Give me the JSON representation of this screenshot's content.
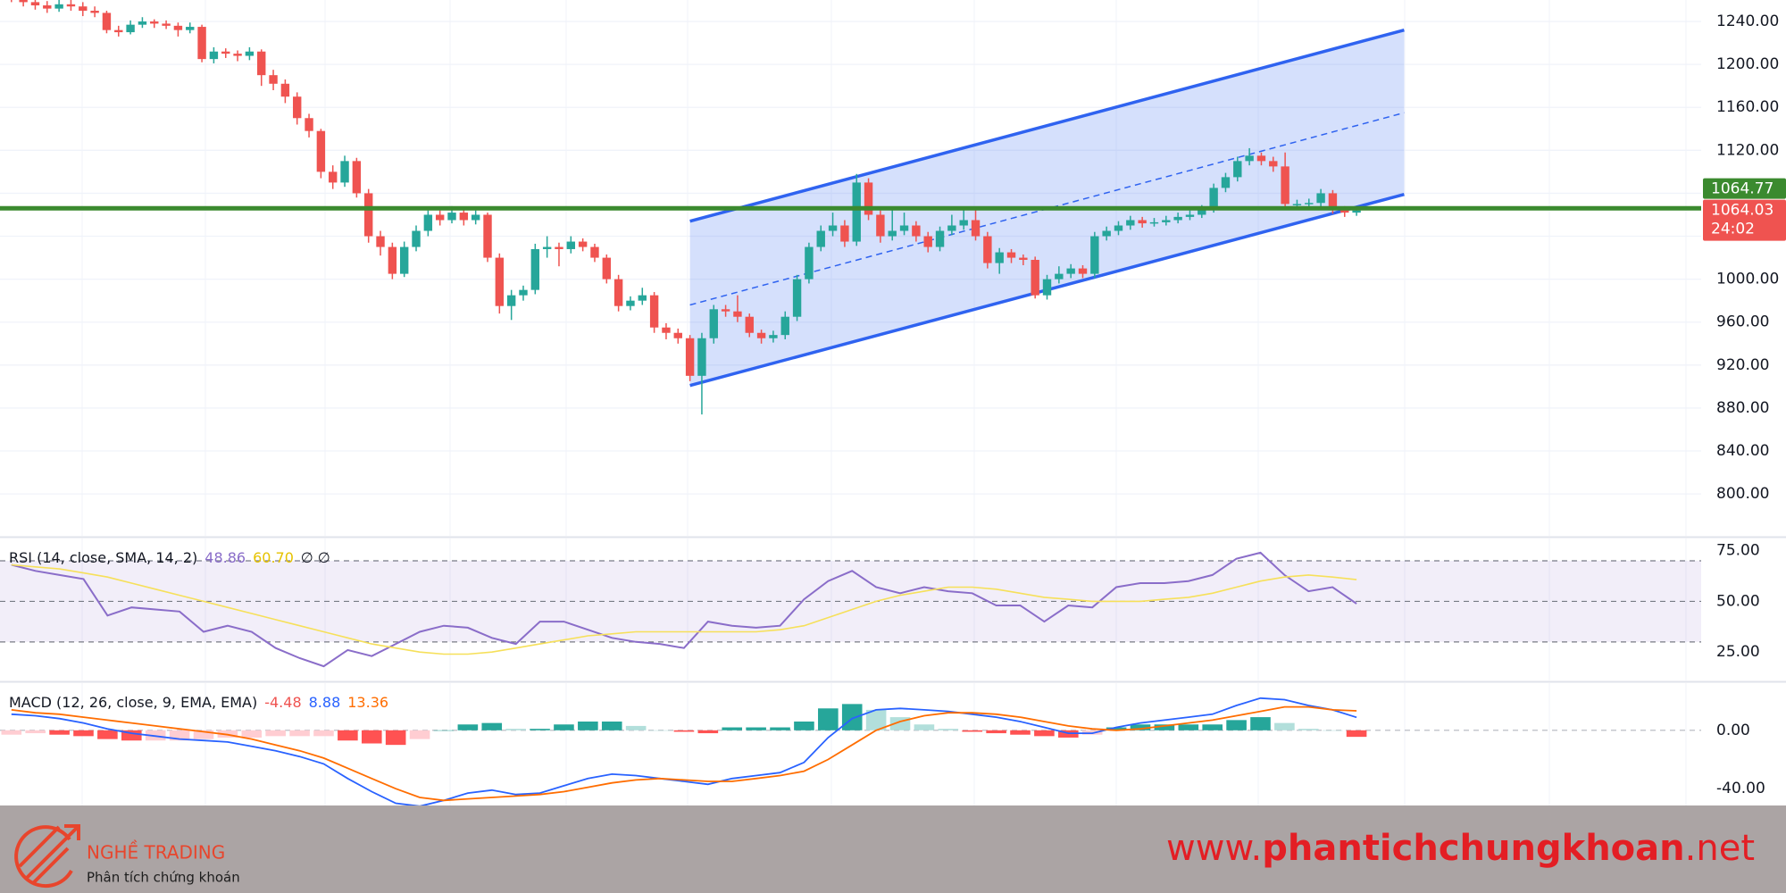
{
  "chart_data": [
    {
      "type": "candlestick",
      "ohlc": [
        [
          1265,
          1268,
          1258,
          1262
        ],
        [
          1262,
          1265,
          1254,
          1258
        ],
        [
          1258,
          1262,
          1251,
          1255
        ],
        [
          1255,
          1259,
          1248,
          1252
        ],
        [
          1252,
          1260,
          1249,
          1256
        ],
        [
          1256,
          1260,
          1250,
          1254
        ],
        [
          1254,
          1258,
          1245,
          1250
        ],
        [
          1250,
          1254,
          1244,
          1248
        ],
        [
          1248,
          1250,
          1229,
          1232
        ],
        [
          1232,
          1236,
          1226,
          1230
        ],
        [
          1230,
          1241,
          1228,
          1237
        ],
        [
          1237,
          1244,
          1234,
          1240
        ],
        [
          1240,
          1242,
          1234,
          1238
        ],
        [
          1238,
          1241,
          1233,
          1236
        ],
        [
          1236,
          1239,
          1226,
          1232
        ],
        [
          1232,
          1239,
          1229,
          1235
        ],
        [
          1235,
          1237,
          1202,
          1205
        ],
        [
          1205,
          1216,
          1201,
          1212
        ],
        [
          1212,
          1215,
          1206,
          1210
        ],
        [
          1210,
          1213,
          1203,
          1208
        ],
        [
          1208,
          1216,
          1204,
          1212
        ],
        [
          1212,
          1214,
          1180,
          1190
        ],
        [
          1190,
          1195,
          1176,
          1182
        ],
        [
          1182,
          1186,
          1164,
          1170
        ],
        [
          1170,
          1174,
          1144,
          1150
        ],
        [
          1150,
          1154,
          1132,
          1138
        ],
        [
          1138,
          1140,
          1094,
          1100
        ],
        [
          1100,
          1106,
          1084,
          1090
        ],
        [
          1090,
          1115,
          1086,
          1110
        ],
        [
          1110,
          1113,
          1076,
          1080
        ],
        [
          1080,
          1084,
          1034,
          1040
        ],
        [
          1040,
          1045,
          1022,
          1030
        ],
        [
          1030,
          1034,
          1000,
          1005
        ],
        [
          1005,
          1035,
          1002,
          1030
        ],
        [
          1030,
          1050,
          1026,
          1045
        ],
        [
          1045,
          1064,
          1040,
          1060
        ],
        [
          1060,
          1064,
          1050,
          1055
        ],
        [
          1055,
          1068,
          1052,
          1062
        ],
        [
          1062,
          1066,
          1050,
          1055
        ],
        [
          1055,
          1064,
          1051,
          1060
        ],
        [
          1060,
          1062,
          1016,
          1020
        ],
        [
          1020,
          1024,
          968,
          975
        ],
        [
          975,
          990,
          962,
          985
        ],
        [
          985,
          994,
          980,
          990
        ],
        [
          990,
          1033,
          986,
          1028
        ],
        [
          1028,
          1040,
          1020,
          1030
        ],
        [
          1030,
          1034,
          1012,
          1028
        ],
        [
          1028,
          1040,
          1024,
          1035
        ],
        [
          1035,
          1038,
          1026,
          1030
        ],
        [
          1030,
          1033,
          1016,
          1020
        ],
        [
          1020,
          1023,
          996,
          1000
        ],
        [
          1000,
          1004,
          970,
          975
        ],
        [
          975,
          984,
          971,
          980
        ],
        [
          980,
          992,
          976,
          985
        ],
        [
          985,
          988,
          950,
          955
        ],
        [
          955,
          959,
          944,
          950
        ],
        [
          950,
          954,
          940,
          945
        ],
        [
          945,
          948,
          905,
          910
        ],
        [
          910,
          950,
          874,
          945
        ],
        [
          945,
          976,
          940,
          972
        ],
        [
          972,
          976,
          965,
          970
        ],
        [
          970,
          985,
          960,
          965
        ],
        [
          965,
          968,
          946,
          950
        ],
        [
          950,
          953,
          940,
          945
        ],
        [
          945,
          952,
          941,
          948
        ],
        [
          948,
          970,
          944,
          965
        ],
        [
          965,
          1004,
          961,
          1000
        ],
        [
          1000,
          1034,
          996,
          1030
        ],
        [
          1030,
          1050,
          1026,
          1045
        ],
        [
          1045,
          1062,
          1040,
          1050
        ],
        [
          1050,
          1055,
          1030,
          1035
        ],
        [
          1035,
          1098,
          1031,
          1090
        ],
        [
          1090,
          1094,
          1055,
          1060
        ],
        [
          1060,
          1064,
          1034,
          1040
        ],
        [
          1040,
          1066,
          1036,
          1045
        ],
        [
          1045,
          1062,
          1041,
          1050
        ],
        [
          1050,
          1054,
          1035,
          1040
        ],
        [
          1040,
          1044,
          1025,
          1030
        ],
        [
          1030,
          1049,
          1026,
          1045
        ],
        [
          1045,
          1060,
          1041,
          1050
        ],
        [
          1050,
          1065,
          1046,
          1055
        ],
        [
          1055,
          1066,
          1036,
          1040
        ],
        [
          1040,
          1044,
          1010,
          1015
        ],
        [
          1015,
          1029,
          1005,
          1025
        ],
        [
          1025,
          1028,
          1015,
          1020
        ],
        [
          1020,
          1023,
          1013,
          1018
        ],
        [
          1018,
          1021,
          982,
          985
        ],
        [
          985,
          1004,
          981,
          1000
        ],
        [
          1000,
          1012,
          996,
          1005
        ],
        [
          1005,
          1014,
          1001,
          1010
        ],
        [
          1010,
          1013,
          1001,
          1005
        ],
        [
          1005,
          1044,
          1001,
          1040
        ],
        [
          1040,
          1049,
          1036,
          1045
        ],
        [
          1045,
          1054,
          1041,
          1050
        ],
        [
          1050,
          1059,
          1046,
          1055
        ],
        [
          1055,
          1058,
          1048,
          1052
        ],
        [
          1052,
          1057,
          1049,
          1053
        ],
        [
          1053,
          1059,
          1050,
          1055
        ],
        [
          1055,
          1062,
          1052,
          1058
        ],
        [
          1058,
          1064,
          1055,
          1060
        ],
        [
          1060,
          1069,
          1057,
          1065
        ],
        [
          1065,
          1089,
          1062,
          1085
        ],
        [
          1085,
          1099,
          1081,
          1095
        ],
        [
          1095,
          1114,
          1091,
          1110
        ],
        [
          1110,
          1122,
          1106,
          1115
        ],
        [
          1115,
          1118,
          1106,
          1110
        ],
        [
          1110,
          1114,
          1100,
          1105
        ],
        [
          1105,
          1118,
          1066,
          1070
        ],
        [
          1070,
          1074,
          1066,
          1070
        ],
        [
          1070,
          1075,
          1066,
          1071
        ],
        [
          1071,
          1084,
          1067,
          1080
        ],
        [
          1080,
          1083,
          1061,
          1065
        ],
        [
          1065,
          1068,
          1058,
          1062
        ],
        [
          1062,
          1067,
          1059,
          1064.03
        ]
      ],
      "up_color": "#26a69a",
      "down_color": "#ef5350",
      "ylim": [
        761,
        1260
      ],
      "yticks": [
        {
          "value": 1240,
          "label": "1240.00"
        },
        {
          "value": 1200,
          "label": "1200.00"
        },
        {
          "value": 1160,
          "label": "1160.00"
        },
        {
          "value": 1120,
          "label": "1120.00"
        },
        {
          "value": 1080,
          "label": "1080.00"
        },
        {
          "value": 1040,
          "label": "1040.00"
        },
        {
          "value": 1000,
          "label": "1000.00"
        },
        {
          "value": 960,
          "label": "960.00"
        },
        {
          "value": 920,
          "label": "920.00"
        },
        {
          "value": 880,
          "label": "880.00"
        },
        {
          "value": 840,
          "label": "840.00"
        },
        {
          "value": 800,
          "label": "800.00"
        }
      ],
      "grid": true,
      "channel": {
        "x": [
          57,
          117
        ],
        "upper": [
          1054,
          1232
        ],
        "middle": [
          976,
          1155
        ],
        "lower": [
          901,
          1079
        ],
        "color": "#2f63f0"
      },
      "horizontal_line": {
        "value": 1066,
        "color": "#3b8a2f"
      },
      "last_price": {
        "value": 1064.03,
        "label": "1064.03"
      },
      "countdown": "24:02",
      "marker_price": {
        "value": 1064.77,
        "label": "1064.77"
      }
    },
    {
      "type": "rsi",
      "title": "RSI (14, close, SMA, 14, 2)",
      "status": "∅ ∅",
      "series": [
        {
          "color": "#8a6dc9",
          "values": [
            68,
            65,
            63,
            61,
            43,
            47,
            46,
            45,
            35,
            38,
            35,
            27,
            22,
            18,
            26,
            23,
            29,
            35,
            38,
            37,
            32,
            29,
            40,
            40,
            36,
            32,
            30,
            29,
            27,
            40,
            38,
            37,
            38,
            51,
            60,
            65,
            57,
            54,
            57,
            55,
            54,
            48,
            48,
            40,
            48,
            47,
            57,
            59,
            59,
            60,
            63,
            71,
            74,
            63,
            55,
            57,
            48.86
          ]
        },
        {
          "color": "#f6e05a",
          "legend_label": "60.70",
          "values": [
            68,
            67,
            66,
            64,
            62,
            59,
            56,
            53,
            50,
            47,
            44,
            41,
            38,
            35,
            32,
            29,
            27,
            25,
            24,
            24,
            25,
            27,
            29,
            31,
            33,
            34,
            35,
            35,
            35,
            35,
            35,
            35,
            36,
            38,
            42,
            46,
            50,
            53,
            55,
            57,
            57,
            56,
            54,
            52,
            51,
            50,
            50,
            50,
            51,
            52,
            54,
            57,
            60,
            62,
            63,
            62,
            60.7
          ]
        }
      ],
      "levels": [
        70,
        50,
        30
      ],
      "band_color": "#7e57c2",
      "ylim": [
        11,
        81
      ],
      "yticks": [
        {
          "value": 75,
          "label": "75.00"
        },
        {
          "value": 50,
          "label": "50.00"
        },
        {
          "value": 25,
          "label": "25.00"
        }
      ]
    },
    {
      "type": "macd",
      "title": "MACD (12, 26, close, 9, EMA, EMA)",
      "histogram": {
        "colors": [
          "#26a69a",
          "#b2dfdb",
          "#ffcdd2",
          "#ff5252"
        ],
        "legend_color": "#ef5350",
        "values": [
          -3,
          -2,
          -3,
          -4,
          -6,
          -7,
          -7,
          -7,
          -6,
          -5,
          -5,
          -4,
          -4,
          -4,
          -7,
          -9,
          -10,
          -6,
          0,
          4,
          5,
          1,
          1,
          4,
          6,
          6,
          3,
          0,
          -1,
          -2,
          2,
          2,
          2,
          6,
          15,
          18,
          14,
          9,
          4,
          1,
          -1,
          -2,
          -3,
          -4,
          -5,
          -3,
          2,
          4,
          4,
          4,
          4,
          7,
          9,
          5,
          1,
          0,
          -4.48
        ]
      },
      "series": [
        {
          "color": "#2962ff",
          "values": [
            11,
            10,
            8,
            5,
            1,
            -2,
            -4,
            -6,
            -7,
            -8,
            -11,
            -14,
            -18,
            -23,
            -33,
            -42,
            -50,
            -52,
            -48,
            -43,
            -41,
            -44,
            -43,
            -38,
            -33,
            -30,
            -31,
            -33,
            -35,
            -37,
            -33,
            -31,
            -29,
            -22,
            -5,
            8,
            14,
            15,
            14,
            13,
            11,
            9,
            6,
            2,
            -2,
            -2,
            2,
            5,
            7,
            9,
            11,
            17,
            22,
            21,
            17,
            14,
            8.88
          ]
        },
        {
          "color": "#ff6d00",
          "values": [
            14,
            12,
            11,
            9,
            7,
            5,
            3,
            1,
            -1,
            -3,
            -6,
            -10,
            -14,
            -19,
            -26,
            -33,
            -40,
            -46,
            -48,
            -47,
            -46,
            -45,
            -44,
            -42,
            -39,
            -36,
            -34,
            -33,
            -34,
            -35,
            -35,
            -33,
            -31,
            -28,
            -20,
            -10,
            0,
            6,
            10,
            12,
            12,
            11,
            9,
            6,
            3,
            1,
            0,
            1,
            3,
            5,
            7,
            10,
            13,
            16,
            16,
            14,
            13.36
          ]
        }
      ],
      "ylim": [
        -51.5,
        32.3
      ],
      "yticks": [
        {
          "value": 0,
          "label": "0.00"
        },
        {
          "value": -40,
          "label": "-40.00"
        }
      ]
    }
  ],
  "footer": {
    "brand": "NGHỀ TRADING",
    "tagline": "Phân tích chứng khoán",
    "url_prefix": "www.",
    "url_domain": "phantichchungkhoan",
    "url_suffix": ".net"
  }
}
